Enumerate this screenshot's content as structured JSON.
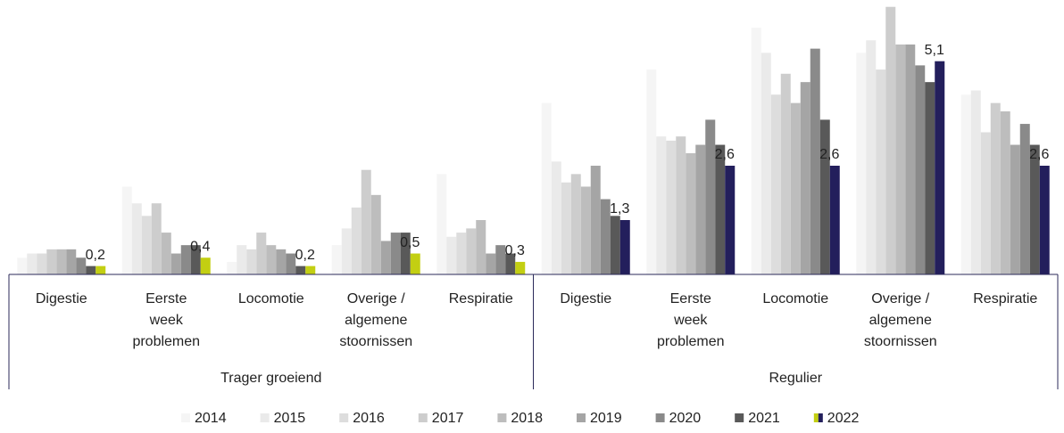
{
  "chart_data": {
    "type": "bar",
    "groups": [
      {
        "name": "Trager groeiend",
        "categories": [
          "Digestie",
          "Eerste week problemen",
          "Locomotie",
          "Overige / algemene stoornissen",
          "Respiratie"
        ]
      },
      {
        "name": "Regulier",
        "categories": [
          "Digestie",
          "Eerste week problemen",
          "Locomotie",
          "Overige / algemene stoornissen",
          "Respiratie"
        ]
      }
    ],
    "ylim": [
      0,
      6.5
    ],
    "series": [
      {
        "name": "2014",
        "color": "#f5f5f5",
        "values": [
          0.4,
          2.1,
          0.3,
          0.7,
          2.4,
          4.1,
          4.9,
          5.9,
          5.3,
          4.3
        ]
      },
      {
        "name": "2015",
        "color": "#eaeaea",
        "values": [
          0.5,
          1.7,
          0.7,
          1.1,
          0.9,
          2.7,
          3.3,
          5.3,
          5.6,
          4.4
        ]
      },
      {
        "name": "2016",
        "color": "#dddddd",
        "values": [
          0.5,
          1.4,
          0.6,
          1.6,
          1.0,
          2.2,
          3.2,
          4.3,
          4.9,
          3.4
        ]
      },
      {
        "name": "2017",
        "color": "#cdcdcd",
        "values": [
          0.6,
          1.7,
          1.0,
          2.5,
          1.1,
          2.4,
          3.3,
          4.8,
          6.4,
          4.1
        ]
      },
      {
        "name": "2018",
        "color": "#bdbdbd",
        "values": [
          0.6,
          1.0,
          0.7,
          1.9,
          1.3,
          2.1,
          2.9,
          4.1,
          5.5,
          3.9
        ]
      },
      {
        "name": "2019",
        "color": "#a5a5a5",
        "values": [
          0.6,
          0.5,
          0.6,
          0.8,
          0.5,
          2.6,
          3.1,
          4.6,
          5.5,
          3.1
        ]
      },
      {
        "name": "2020",
        "color": "#8a8a8a",
        "values": [
          0.4,
          0.7,
          0.5,
          1.0,
          0.7,
          1.8,
          3.7,
          5.4,
          5.0,
          3.6
        ]
      },
      {
        "name": "2021",
        "color": "#595959",
        "values": [
          0.2,
          0.7,
          0.2,
          1.0,
          0.5,
          1.4,
          3.1,
          3.7,
          4.6,
          3.1
        ]
      },
      {
        "name": "2022",
        "colors": [
          "#c3cf12",
          "#231f5c"
        ],
        "values": [
          0.2,
          0.4,
          0.2,
          0.5,
          0.3,
          1.3,
          2.6,
          2.6,
          5.1,
          2.6
        ],
        "value_labels": [
          "0,2",
          "0,4",
          "0,2",
          "0,5",
          "0,3",
          "1,3",
          "2,6",
          "2,6",
          "5,1",
          "2,6"
        ]
      }
    ]
  }
}
